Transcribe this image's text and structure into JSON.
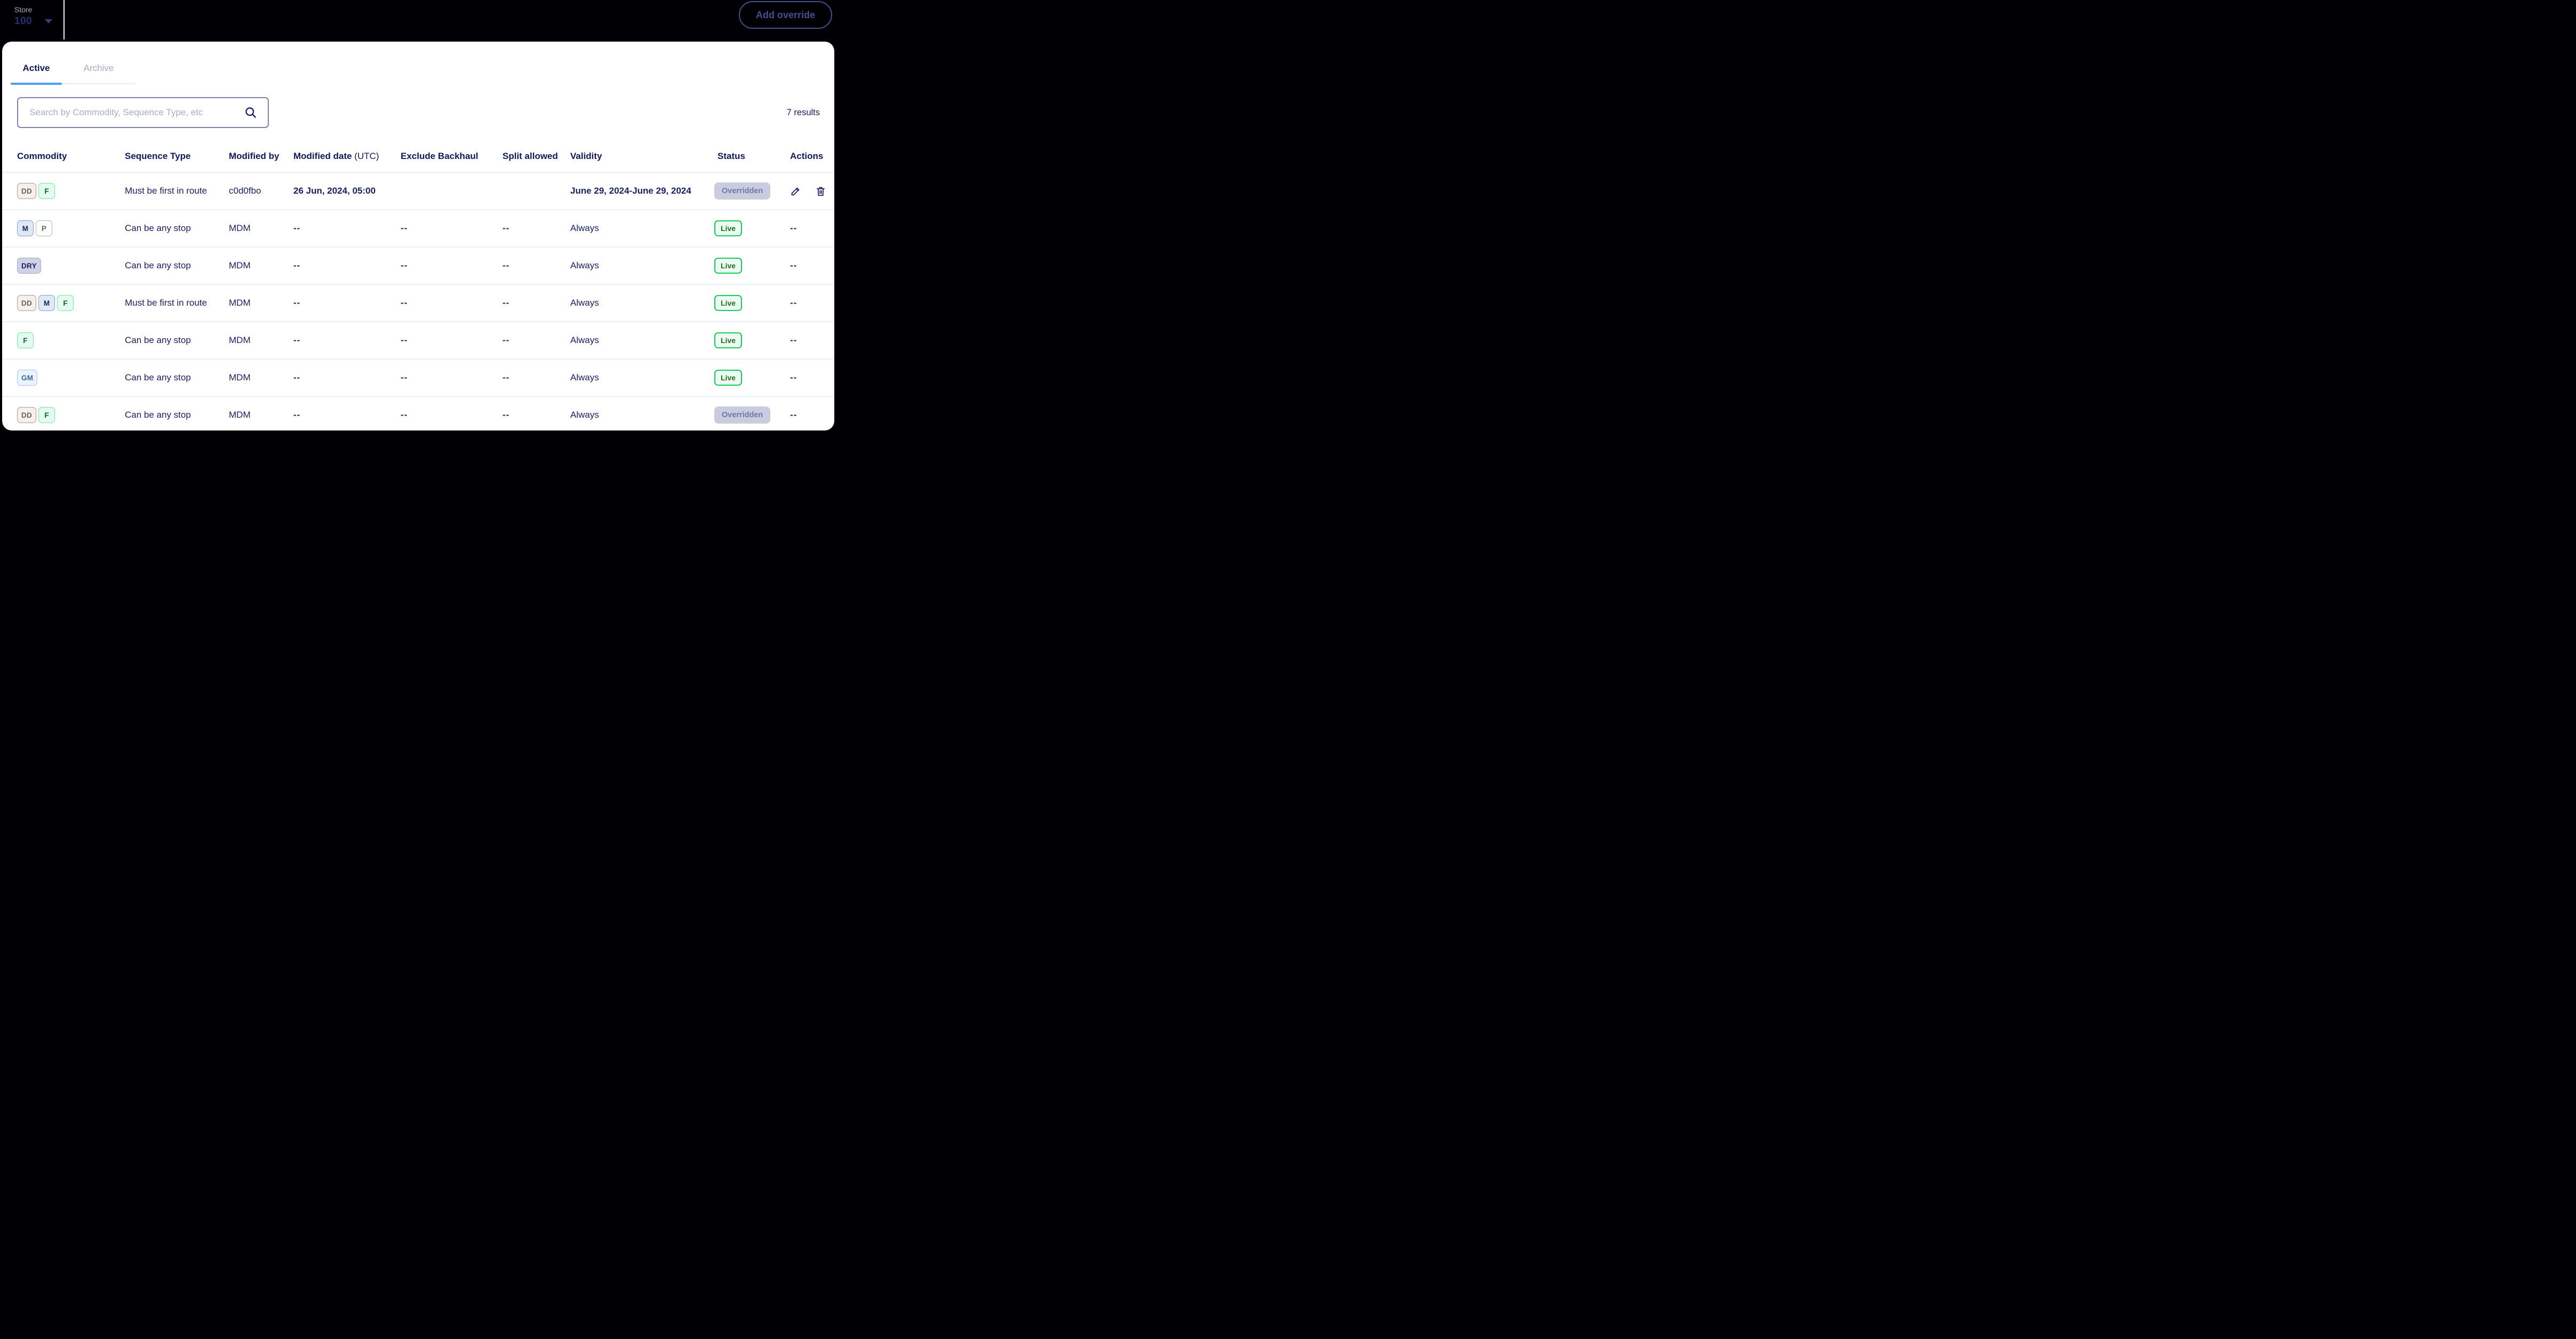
{
  "topbar": {
    "store_label": "Store",
    "store_value": "100",
    "add_override_label": "Add override"
  },
  "tabs": {
    "active": "Active",
    "archive": "Archive"
  },
  "search": {
    "placeholder": "Search by Commodity, Sequence Type, etc"
  },
  "results_count": "7 results",
  "icons": {
    "store_caret": "chevron-down-icon",
    "search": "search-icon",
    "edit": "pencil-icon",
    "delete": "trash-icon"
  },
  "colors": {
    "background": "#000004",
    "navy_text": "#1A2162",
    "header_text": "#12185A",
    "active_tab_underline": "#4B9EF9",
    "inactive_tab_text": "#A7ACC3",
    "outline_button": "#42508F",
    "row_divider": "#E9EFF7",
    "live_green_border": "#1CCB57",
    "overridden_bg": "#C9CCDE"
  },
  "badge_styles": {
    "DD": {
      "bg": "#F8EFE9",
      "border": "#A59C95",
      "text": "#5F6268"
    },
    "F": {
      "bg": "#E3FCEE",
      "border": "#70E9A5",
      "text": "#135A2E"
    },
    "M": {
      "bg": "#DEE8F6",
      "border": "#84A2CE",
      "text": "#122A50"
    },
    "P": {
      "bg": "#FCFEFC",
      "border": "#ABB8AA",
      "text": "#65686D"
    },
    "DRY": {
      "bg": "#CFD2E4",
      "border": "#A8ABC8",
      "text": "#191F5E"
    },
    "GM": {
      "bg": "#EBF3FE",
      "border": "#A5C7F2",
      "text": "#3A699F"
    }
  },
  "status_styles": {
    "live": {
      "bg": "#EAFDF2",
      "border": "#1CCB57",
      "text": "#2B6A1D"
    },
    "overridden": {
      "bg": "#C9CCDE",
      "border": "transparent",
      "text": "#7177A8"
    }
  },
  "table": {
    "columns": [
      {
        "key": "commodity",
        "label": "Commodity"
      },
      {
        "key": "sequence_type",
        "label": "Sequence Type"
      },
      {
        "key": "modified_by",
        "label": "Modified by"
      },
      {
        "key": "modified_date",
        "label": "Modified date",
        "suffix": "(UTC)"
      },
      {
        "key": "exclude_backhaul",
        "label": "Exclude Backhaul"
      },
      {
        "key": "split_allowed",
        "label": "Split allowed"
      },
      {
        "key": "validity",
        "label": "Validity"
      },
      {
        "key": "status",
        "label": "Status"
      },
      {
        "key": "actions",
        "label": "Actions"
      }
    ],
    "rows": [
      {
        "badges": [
          "DD",
          "F"
        ],
        "sequence_type": "Must be first in route",
        "modified_by": "c0d0fbo",
        "modified_date": "26 Jun, 2024, 05:00",
        "exclude_backhaul": "",
        "split_allowed": "",
        "validity": "June 29, 2024-June 29, 2024",
        "status": "Overridden",
        "status_type": "overridden",
        "actions": "icons",
        "emphasis": true
      },
      {
        "badges": [
          "M",
          "P"
        ],
        "sequence_type": "Can be any stop",
        "modified_by": "MDM",
        "modified_date": "--",
        "exclude_backhaul": "--",
        "split_allowed": "--",
        "validity": "Always",
        "status": "Live",
        "status_type": "live",
        "actions": "--"
      },
      {
        "badges": [
          "DRY"
        ],
        "sequence_type": "Can be any stop",
        "modified_by": "MDM",
        "modified_date": "--",
        "exclude_backhaul": "--",
        "split_allowed": "--",
        "validity": "Always",
        "status": "Live",
        "status_type": "live",
        "actions": "--"
      },
      {
        "badges": [
          "DD",
          "M",
          "F"
        ],
        "sequence_type": "Must be first in route",
        "modified_by": "MDM",
        "modified_date": "--",
        "exclude_backhaul": "--",
        "split_allowed": "--",
        "validity": "Always",
        "status": "Live",
        "status_type": "live",
        "actions": "--"
      },
      {
        "badges": [
          "F"
        ],
        "sequence_type": "Can be any stop",
        "modified_by": "MDM",
        "modified_date": "--",
        "exclude_backhaul": "--",
        "split_allowed": "--",
        "validity": "Always",
        "status": "Live",
        "status_type": "live",
        "actions": "--"
      },
      {
        "badges": [
          "GM"
        ],
        "sequence_type": "Can be any stop",
        "modified_by": "MDM",
        "modified_date": "--",
        "exclude_backhaul": "--",
        "split_allowed": "--",
        "validity": "Always",
        "status": "Live",
        "status_type": "live",
        "actions": "--"
      },
      {
        "badges": [
          "DD",
          "F"
        ],
        "sequence_type": "Can be any stop",
        "modified_by": "MDM",
        "modified_date": "--",
        "exclude_backhaul": "--",
        "split_allowed": "--",
        "validity": "Always",
        "status": "Overridden",
        "status_type": "overridden",
        "actions": "--"
      }
    ]
  }
}
